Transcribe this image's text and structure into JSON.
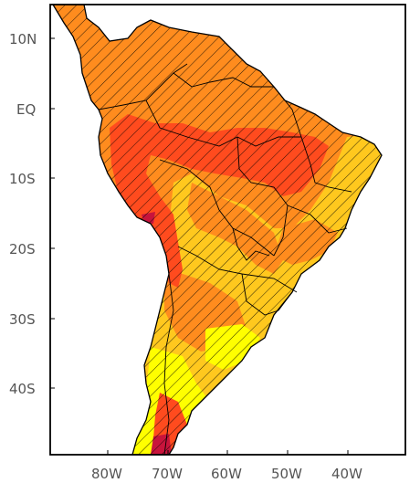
{
  "map": {
    "y_axis_labels": [
      "10N",
      "EQ",
      "10S",
      "20S",
      "30S",
      "40S"
    ],
    "x_axis_labels": [
      "80W",
      "70W",
      "60W",
      "50W",
      "40W"
    ],
    "colors": {
      "ocean": "#ffffff",
      "yellow": "#ffff00",
      "gold": "#ffc81e",
      "orange": "#ff8c1e",
      "red_orange": "#ff4b1e",
      "dark_red": "#c8143c",
      "border": "#000000",
      "hatch": "#000000"
    }
  }
}
